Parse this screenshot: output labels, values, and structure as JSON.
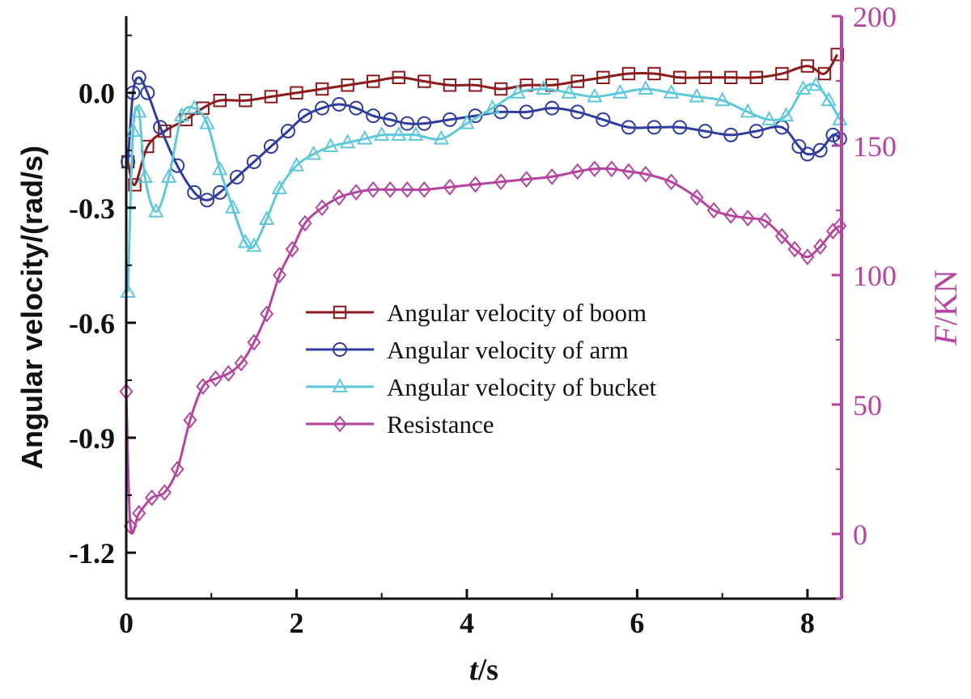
{
  "chart_data": {
    "type": "line",
    "xlabel_italic": "t",
    "xlabel_unit": "/s",
    "ylabel": "Angular velocity/(rad/s)",
    "y2label_italic": "F",
    "y2label_unit": "/KN",
    "xlim": [
      0,
      8.4
    ],
    "ylim": [
      -1.32,
      0.2
    ],
    "y2lim": [
      -25,
      200
    ],
    "xticks": [
      "0",
      "2",
      "4",
      "6",
      "8"
    ],
    "xtick_values": [
      0,
      2,
      4,
      6,
      8
    ],
    "yticks": [
      "0.0",
      "-0.3",
      "-0.6",
      "-0.9",
      "-1.2"
    ],
    "ytick_values": [
      0.0,
      -0.3,
      -0.6,
      -0.9,
      -1.2
    ],
    "y2ticks": [
      "200",
      "150",
      "100",
      "50",
      "0"
    ],
    "y2tick_values": [
      200,
      150,
      100,
      50,
      0
    ],
    "legend_position": "center",
    "series": [
      {
        "name": "Angular velocity of boom",
        "axis": "left",
        "color": "#8b1a1a",
        "marker": "square",
        "x": [
          0.02,
          0.1,
          0.25,
          0.45,
          0.7,
          0.9,
          1.1,
          1.4,
          1.7,
          2.0,
          2.3,
          2.6,
          2.9,
          3.2,
          3.5,
          3.8,
          4.1,
          4.4,
          4.7,
          5.0,
          5.3,
          5.6,
          5.9,
          6.2,
          6.5,
          6.8,
          7.1,
          7.4,
          7.7,
          8.0,
          8.2,
          8.35
        ],
        "y": [
          -0.18,
          -0.24,
          -0.14,
          -0.1,
          -0.07,
          -0.04,
          -0.02,
          -0.02,
          -0.01,
          0.0,
          0.01,
          0.02,
          0.03,
          0.04,
          0.03,
          0.02,
          0.02,
          0.01,
          0.02,
          0.02,
          0.03,
          0.04,
          0.05,
          0.05,
          0.04,
          0.04,
          0.04,
          0.04,
          0.05,
          0.07,
          0.05,
          0.1
        ]
      },
      {
        "name": "Angular velocity of arm",
        "axis": "left",
        "color": "#2e3d9e",
        "marker": "circle",
        "x": [
          0.02,
          0.08,
          0.15,
          0.25,
          0.4,
          0.6,
          0.8,
          0.95,
          1.1,
          1.3,
          1.5,
          1.7,
          1.9,
          2.1,
          2.3,
          2.5,
          2.7,
          2.9,
          3.1,
          3.3,
          3.5,
          3.8,
          4.1,
          4.4,
          4.7,
          5.0,
          5.3,
          5.6,
          5.9,
          6.2,
          6.5,
          6.8,
          7.1,
          7.4,
          7.7,
          7.9,
          8.0,
          8.15,
          8.3,
          8.38
        ],
        "y": [
          -0.18,
          0.0,
          0.04,
          0.0,
          -0.09,
          -0.19,
          -0.26,
          -0.28,
          -0.26,
          -0.22,
          -0.18,
          -0.14,
          -0.1,
          -0.06,
          -0.04,
          -0.03,
          -0.04,
          -0.06,
          -0.07,
          -0.08,
          -0.08,
          -0.07,
          -0.06,
          -0.05,
          -0.05,
          -0.04,
          -0.05,
          -0.07,
          -0.09,
          -0.09,
          -0.09,
          -0.1,
          -0.11,
          -0.1,
          -0.09,
          -0.14,
          -0.16,
          -0.15,
          -0.11,
          -0.12
        ]
      },
      {
        "name": "Angular velocity of bucket",
        "axis": "left",
        "color": "#5fc9d9",
        "marker": "triangle",
        "x": [
          0.02,
          0.08,
          0.15,
          0.22,
          0.35,
          0.5,
          0.65,
          0.8,
          0.95,
          1.1,
          1.25,
          1.4,
          1.5,
          1.65,
          1.8,
          2.0,
          2.2,
          2.4,
          2.6,
          2.8,
          3.0,
          3.2,
          3.4,
          3.7,
          4.0,
          4.3,
          4.6,
          4.9,
          5.2,
          5.5,
          5.8,
          6.1,
          6.4,
          6.7,
          7.0,
          7.3,
          7.55,
          7.75,
          7.95,
          8.1,
          8.25,
          8.38
        ],
        "y": [
          -0.52,
          -0.1,
          -0.05,
          -0.22,
          -0.31,
          -0.22,
          -0.06,
          -0.04,
          -0.08,
          -0.2,
          -0.3,
          -0.39,
          -0.4,
          -0.33,
          -0.25,
          -0.19,
          -0.16,
          -0.14,
          -0.13,
          -0.12,
          -0.11,
          -0.11,
          -0.11,
          -0.12,
          -0.08,
          -0.04,
          0.0,
          0.01,
          0.0,
          -0.01,
          0.0,
          0.01,
          0.0,
          -0.01,
          -0.02,
          -0.05,
          -0.07,
          -0.06,
          0.01,
          0.02,
          -0.02,
          -0.07
        ]
      },
      {
        "name": "Resistance",
        "axis": "right",
        "color": "#b5449f",
        "marker": "diamond",
        "x": [
          0.0,
          0.05,
          0.15,
          0.3,
          0.45,
          0.6,
          0.75,
          0.9,
          1.05,
          1.2,
          1.35,
          1.5,
          1.65,
          1.8,
          1.95,
          2.1,
          2.3,
          2.5,
          2.7,
          2.9,
          3.1,
          3.3,
          3.5,
          3.8,
          4.1,
          4.4,
          4.7,
          5.0,
          5.3,
          5.5,
          5.7,
          5.9,
          6.1,
          6.4,
          6.7,
          6.9,
          7.1,
          7.3,
          7.5,
          7.7,
          7.85,
          8.0,
          8.15,
          8.3,
          8.38
        ],
        "y": [
          55,
          3,
          8,
          14,
          16,
          25,
          44,
          57,
          60,
          62,
          66,
          74,
          85,
          100,
          110,
          120,
          126,
          130,
          132,
          133,
          133,
          133,
          133,
          134,
          135,
          136,
          137,
          138,
          140,
          141,
          141,
          140,
          139,
          136,
          130,
          125,
          123,
          122,
          121,
          115,
          110,
          107,
          111,
          117,
          119
        ]
      }
    ]
  }
}
